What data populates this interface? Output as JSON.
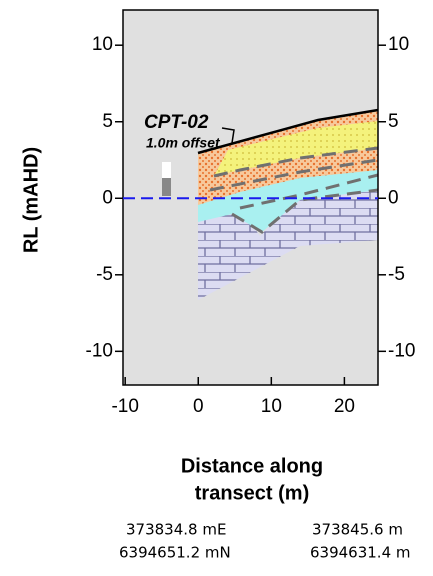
{
  "chart_data": {
    "type": "cross-section",
    "y_label": "RL (mAHD)",
    "x_label": [
      "Distance along",
      "transect (m)"
    ],
    "annotations": [
      "CPT-02",
      "1.0m offset"
    ],
    "xlim": [
      -10.3,
      24.6
    ],
    "xticks": [
      -10,
      0,
      10,
      20
    ],
    "ylim": [
      -12.2,
      12.3
    ],
    "yticks": [
      10,
      5,
      0,
      -5,
      -10
    ],
    "water_level": 0,
    "footer": [
      [
        "373834.8 mE",
        "6394651.2 mN"
      ],
      [
        "373845.6 m",
        "6394631.4 m"
      ]
    ]
  }
}
